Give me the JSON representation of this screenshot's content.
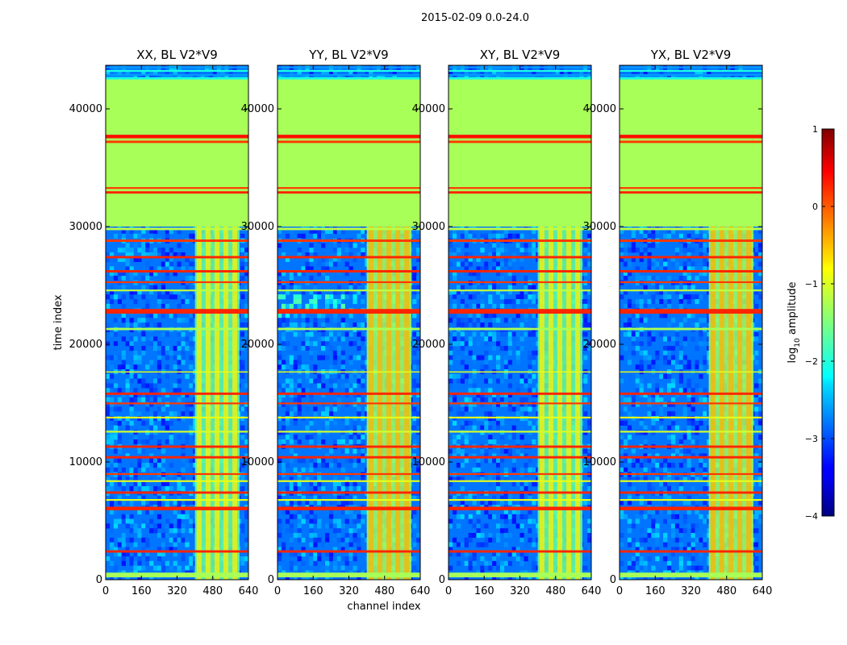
{
  "figure": {
    "suptitle": "2015-02-09 0.0-24.0",
    "xlabel": "channel index",
    "ylabel": "time index"
  },
  "chart_data": {
    "type": "heatmap",
    "title": "2015-02-09 0.0-24.0",
    "xlabel": "channel index",
    "ylabel": "time index",
    "xlim": [
      0,
      640
    ],
    "ylim": [
      0,
      43700
    ],
    "x_ticks": [
      0,
      160,
      320,
      480,
      640
    ],
    "x_tick_labels": [
      "0",
      "160",
      "320",
      "480",
      "640"
    ],
    "y_ticks": [
      0,
      10000,
      20000,
      30000,
      40000
    ],
    "y_tick_labels": [
      "0",
      "10000",
      "20000",
      "30000",
      "40000"
    ],
    "colormap": "jet",
    "colorbar": {
      "label": "log10 amplitude",
      "label_base": "log",
      "label_sub": "10",
      "label_rest": " amplitude",
      "range": [
        -4,
        1
      ],
      "ticks": [
        1,
        0,
        -1,
        -2,
        -3,
        -4
      ],
      "tick_labels": [
        "1",
        "0",
        "−1",
        "−2",
        "−3",
        "−4"
      ]
    },
    "panels": [
      {
        "title": "XX, BL V2*V9",
        "pol": "XX"
      },
      {
        "title": "YY, BL V2*V9",
        "pol": "YY"
      },
      {
        "title": "XY, BL V2*V9",
        "pol": "XY"
      },
      {
        "title": "YX, BL V2*V9",
        "pol": "YX"
      }
    ],
    "regions": {
      "flagged_block_time": [
        30000,
        42500
      ],
      "flagged_value": -1.3,
      "background_value": -2.8,
      "rfi_channel_range": [
        400,
        600
      ],
      "rfi_value": -1.6
    }
  }
}
